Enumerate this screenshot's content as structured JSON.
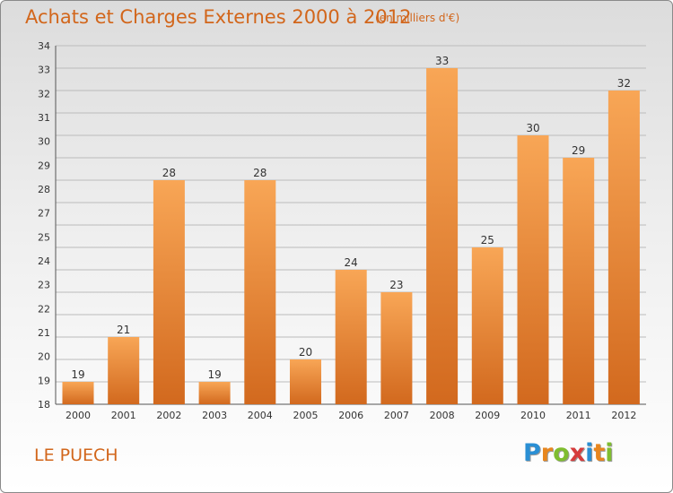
{
  "header": {
    "title": "Achats et Charges Externes 2000 à 2012",
    "unit": "(en milliers d'€)"
  },
  "footer": {
    "commune": "LE PUECH",
    "brand": "Proxiti",
    "brand_colors": [
      "#2a8fd4",
      "#e8861e",
      "#7fbd2f",
      "#d63c3c",
      "#2a8fd4",
      "#e8861e",
      "#7fbd2f"
    ]
  },
  "colors": {
    "bar_top": "#f8a656",
    "bar_bottom": "#d2691e",
    "accent": "#d2661b",
    "grid": "#bbbbbb"
  },
  "chart_data": {
    "type": "bar",
    "title": "Achats et Charges Externes 2000 à 2012",
    "subtitle": "(en milliers d'€)",
    "categories": [
      "2000",
      "2001",
      "2002",
      "2003",
      "2004",
      "2005",
      "2006",
      "2007",
      "2008",
      "2009",
      "2010",
      "2011",
      "2012"
    ],
    "values": [
      19,
      21,
      28,
      19,
      28,
      20,
      24,
      23,
      33,
      25,
      30,
      29,
      32
    ],
    "ylim": [
      18,
      34
    ],
    "yticks": [
      "18",
      "19",
      "20",
      "21",
      "22",
      "23",
      "24",
      "25",
      "27",
      "28",
      "29",
      "30",
      "31",
      "32",
      "33",
      "34"
    ],
    "grid": true,
    "xlabel": "",
    "ylabel": ""
  }
}
